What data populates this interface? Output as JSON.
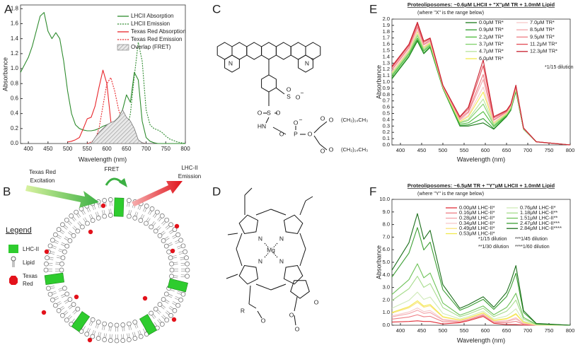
{
  "panel_labels": [
    "A",
    "B",
    "C",
    "D",
    "E",
    "F"
  ],
  "chart_data": [
    {
      "type": "line",
      "x_label": "Wavelength (nm)",
      "y_label": "Absorbance",
      "x": [
        380,
        390,
        400,
        410,
        420,
        430,
        440,
        450,
        460,
        470,
        480,
        490,
        500,
        510,
        520,
        530,
        540,
        550,
        560,
        570,
        580,
        590,
        600,
        610,
        620,
        630,
        640,
        650,
        660,
        670,
        680,
        690,
        700,
        710,
        720,
        730,
        740,
        750,
        760,
        770,
        780,
        790,
        800
      ],
      "xlim": [
        380,
        800
      ],
      "xticks": [
        400,
        450,
        500,
        550,
        600,
        650,
        700,
        750,
        800
      ],
      "ylim": [
        0,
        1.85
      ],
      "yticks": [
        {
          "value": 0,
          "label": "0.0"
        },
        {
          "value": 0.2,
          "label": "0.2"
        },
        {
          "value": 0.4,
          "label": "0.4"
        },
        {
          "value": 0.6,
          "label": "0.6"
        },
        {
          "value": 0.8,
          "label": "0.8"
        },
        {
          "value": 1,
          "label": "1.0"
        },
        {
          "value": 1.2,
          "label": "1.2"
        },
        {
          "value": 1.4,
          "label": "1.4"
        },
        {
          "value": 1.6,
          "label": "1.6"
        },
        {
          "value": 1.8,
          "label": "1.8"
        }
      ],
      "legend": "upper right",
      "legend_columns": 1,
      "series": [
        {
          "name": "LHCII Absorption",
          "color": "#2e8b2e",
          "dash": false,
          "values": [
            0.95,
            1.05,
            1.15,
            1.3,
            1.5,
            1.7,
            1.75,
            1.5,
            1.4,
            1.48,
            1.4,
            1.1,
            0.7,
            0.4,
            0.25,
            0.2,
            0.18,
            0.17,
            0.17,
            0.18,
            0.2,
            0.23,
            0.25,
            0.27,
            0.3,
            0.35,
            0.45,
            0.65,
            0.55,
            0.95,
            0.85,
            0.3,
            0.08,
            0.03,
            0.01,
            0,
            0,
            0,
            0,
            0,
            0,
            0,
            0
          ]
        },
        {
          "name": "LHCII Emission",
          "color": "#2e8b2e",
          "dash": true,
          "values": [
            null,
            null,
            null,
            null,
            null,
            null,
            null,
            null,
            null,
            null,
            null,
            null,
            null,
            null,
            null,
            null,
            null,
            null,
            null,
            null,
            null,
            null,
            null,
            null,
            0,
            0.02,
            0.05,
            0.15,
            0.4,
            0.9,
            1.35,
            1.1,
            0.45,
            0.25,
            0.2,
            0.18,
            0.15,
            0.1,
            0.06,
            0.04,
            0.02,
            0.01,
            0
          ]
        },
        {
          "name": "Texas Red Absorption",
          "color": "#e8262b",
          "dash": false,
          "values": [
            null,
            null,
            null,
            null,
            null,
            null,
            null,
            null,
            null,
            null,
            null,
            null,
            0.02,
            0.03,
            0.05,
            0.08,
            0.2,
            0.33,
            0.35,
            0.5,
            0.75,
            0.98,
            0.8,
            0.3,
            0.05,
            0.01,
            0,
            null,
            null,
            null,
            null,
            null,
            null,
            null,
            null,
            null,
            null,
            null,
            null,
            null,
            null,
            null,
            null
          ]
        },
        {
          "name": "Texas Red Emission",
          "color": "#e8262b",
          "dash": true,
          "values": [
            null,
            null,
            null,
            null,
            null,
            null,
            null,
            null,
            null,
            null,
            null,
            null,
            null,
            null,
            null,
            null,
            null,
            0,
            0.02,
            0.05,
            0.2,
            0.5,
            0.8,
            0.88,
            0.7,
            0.45,
            0.3,
            0.18,
            0.1,
            0.06,
            0.03,
            0.01,
            0,
            null,
            null,
            null,
            null,
            null,
            null,
            null,
            null,
            null,
            null
          ]
        },
        {
          "name": "Overlap (FRET)",
          "color": "#777777",
          "kind": "area",
          "values": [
            null,
            null,
            null,
            null,
            null,
            null,
            null,
            null,
            null,
            null,
            null,
            null,
            null,
            null,
            null,
            null,
            null,
            null,
            0,
            0.08,
            0.15,
            0.2,
            0.25,
            0.28,
            0.3,
            0.35,
            0.45,
            0.35,
            0.3,
            0.2,
            0.05,
            0.01,
            0,
            null,
            null,
            null,
            null,
            null,
            null,
            null,
            null,
            null,
            null
          ]
        }
      ]
    },
    {
      "type": "line",
      "title": "Proteoliposomes: ~0.6μM LHCII + \"X\"μM TR + 1.0mM Lipid",
      "subtitle": "(where \"X\" is the range below)",
      "notes": [
        "*1/15 dilution"
      ],
      "x_label": "Wavelength (nm)",
      "y_label": "Absorbance",
      "x": [
        380,
        420,
        440,
        455,
        470,
        500,
        540,
        560,
        595,
        620,
        650,
        660,
        672,
        690,
        720,
        800
      ],
      "xlim": [
        380,
        800
      ],
      "xticks": [
        400,
        450,
        500,
        550,
        600,
        650,
        700,
        750,
        800
      ],
      "ylim": [
        0,
        2
      ],
      "yticks": [
        {
          "value": 0,
          "label": "0.0"
        },
        {
          "value": 0.1,
          "label": "0.1"
        },
        {
          "value": 0.2,
          "label": "0.2"
        },
        {
          "value": 0.3,
          "label": "0.3"
        },
        {
          "value": 0.4,
          "label": "0.4"
        },
        {
          "value": 0.5,
          "label": "0.5"
        },
        {
          "value": 0.6,
          "label": "0.6"
        },
        {
          "value": 0.7,
          "label": "0.7"
        },
        {
          "value": 0.8,
          "label": "0.8"
        },
        {
          "value": 0.9,
          "label": "0.9"
        },
        {
          "value": 1,
          "label": "1.0"
        },
        {
          "value": 1.1,
          "label": "1.1"
        },
        {
          "value": 1.2,
          "label": "1.2"
        },
        {
          "value": 1.3,
          "label": "1.3"
        },
        {
          "value": 1.4,
          "label": "1.4"
        },
        {
          "value": 1.5,
          "label": "1.5"
        },
        {
          "value": 1.6,
          "label": "1.6"
        },
        {
          "value": 1.7,
          "label": "1.7"
        },
        {
          "value": 1.8,
          "label": "1.8"
        },
        {
          "value": 1.9,
          "label": "1.9"
        },
        {
          "value": 2,
          "label": "2.0"
        }
      ],
      "legend": "upper right",
      "legend_columns": 2,
      "series": [
        {
          "name": "0.0μM TR*",
          "color": "#1a7a1a",
          "values": [
            1.05,
            1.4,
            1.65,
            1.45,
            1.55,
            0.9,
            0.3,
            0.3,
            0.35,
            0.25,
            0.45,
            0.55,
            0.85,
            0.25,
            0.05,
            0
          ]
        },
        {
          "name": "0.9μM TR*",
          "color": "#2e9e2e",
          "values": [
            1.06,
            1.41,
            1.67,
            1.46,
            1.56,
            0.9,
            0.31,
            0.32,
            0.42,
            0.26,
            0.46,
            0.56,
            0.86,
            0.25,
            0.05,
            0
          ]
        },
        {
          "name": "2.2μM TR*",
          "color": "#4cbb3a",
          "values": [
            1.09,
            1.44,
            1.7,
            1.49,
            1.58,
            0.91,
            0.33,
            0.35,
            0.53,
            0.29,
            0.47,
            0.57,
            0.87,
            0.25,
            0.05,
            0
          ]
        },
        {
          "name": "3.7μM TR*",
          "color": "#7fd16a",
          "values": [
            1.11,
            1.46,
            1.74,
            1.51,
            1.6,
            0.92,
            0.35,
            0.39,
            0.65,
            0.31,
            0.48,
            0.58,
            0.88,
            0.26,
            0.05,
            0
          ]
        },
        {
          "name": "4.7μM TR*",
          "color": "#b7e39b",
          "values": [
            1.13,
            1.48,
            1.76,
            1.53,
            1.61,
            0.92,
            0.36,
            0.41,
            0.73,
            0.33,
            0.49,
            0.59,
            0.89,
            0.26,
            0.05,
            0
          ]
        },
        {
          "name": "6.0μM TR*",
          "color": "#f2e94e",
          "values": [
            1.15,
            1.5,
            1.8,
            1.55,
            1.62,
            0.92,
            0.37,
            0.45,
            0.84,
            0.35,
            0.5,
            0.6,
            0.9,
            0.26,
            0.05,
            0
          ]
        },
        {
          "name": "7.0μM TR*",
          "color": "#f7c9c9",
          "values": [
            1.16,
            1.51,
            1.82,
            1.56,
            1.64,
            0.93,
            0.39,
            0.47,
            0.92,
            0.36,
            0.51,
            0.61,
            0.91,
            0.26,
            0.05,
            0
          ]
        },
        {
          "name": "8.5μM TR*",
          "color": "#f3a3a8",
          "values": [
            1.19,
            1.54,
            1.86,
            1.59,
            1.65,
            0.93,
            0.4,
            0.51,
            1.04,
            0.39,
            0.52,
            0.62,
            0.92,
            0.26,
            0.05,
            0
          ]
        },
        {
          "name": "9.5μM TR*",
          "color": "#ee7d84",
          "values": [
            1.2,
            1.55,
            1.88,
            1.6,
            1.67,
            0.94,
            0.42,
            0.53,
            1.12,
            0.4,
            0.53,
            0.63,
            0.93,
            0.27,
            0.05,
            0
          ]
        },
        {
          "name": "11.2μM TR*",
          "color": "#e24a55",
          "values": [
            1.23,
            1.58,
            1.92,
            1.63,
            1.69,
            0.95,
            0.44,
            0.57,
            1.26,
            0.43,
            0.54,
            0.64,
            0.94,
            0.27,
            0.05,
            0
          ]
        },
        {
          "name": "12.3μM TR*",
          "color": "#c8202e",
          "values": [
            1.25,
            1.6,
            1.95,
            1.65,
            1.7,
            0.95,
            0.45,
            0.6,
            1.35,
            0.45,
            0.55,
            0.65,
            0.95,
            0.27,
            0.05,
            0
          ]
        }
      ]
    },
    {
      "type": "line",
      "title": "Proteoliposomes: ~6.5μM TR + \"Y\"μM LHCII + 1.0mM Lipid",
      "subtitle": "(where \"Y\" is the range below)",
      "notes": [
        "*1/15 dilution",
        "***1/45 dilution",
        "**1/30 dilution",
        "****1/60 dilution"
      ],
      "x_label": "Wavelength (nm)",
      "y_label": "Absorbance",
      "x": [
        380,
        420,
        440,
        455,
        470,
        500,
        540,
        560,
        595,
        620,
        650,
        660,
        672,
        690,
        720,
        800
      ],
      "xlim": [
        380,
        800
      ],
      "xticks": [
        400,
        450,
        500,
        550,
        600,
        650,
        700,
        750,
        800
      ],
      "ylim": [
        0,
        10
      ],
      "yticks": [
        {
          "value": 0,
          "label": "0.0"
        },
        {
          "value": 1,
          "label": "1.0"
        },
        {
          "value": 2,
          "label": "2.0"
        },
        {
          "value": 3,
          "label": "3.0"
        },
        {
          "value": 4,
          "label": "4.0"
        },
        {
          "value": 5,
          "label": "5.0"
        },
        {
          "value": 6,
          "label": "6.0"
        },
        {
          "value": 7,
          "label": "7.0"
        },
        {
          "value": 8,
          "label": "8.0"
        },
        {
          "value": 9,
          "label": "9.0"
        },
        {
          "value": 10,
          "label": "10.0"
        }
      ],
      "legend": "upper right",
      "legend_columns": 2,
      "series": [
        {
          "name": "0.00μM LHC-II*",
          "color": "#e0303a",
          "values": [
            0.25,
            0.3,
            0.35,
            0.3,
            0.3,
            0.1,
            0.2,
            0.35,
            0.7,
            0.15,
            0.05,
            0.05,
            0.05,
            0.02,
            0,
            0
          ]
        },
        {
          "name": "0.16μM LHC-II*",
          "color": "#ee7d84",
          "values": [
            0.48,
            0.65,
            0.83,
            0.67,
            0.71,
            0.28,
            0.26,
            0.42,
            0.79,
            0.22,
            0.19,
            0.24,
            0.31,
            0.08,
            0.01,
            0
          ]
        },
        {
          "name": "0.28μM LHC-II*",
          "color": "#f3a3a8",
          "values": [
            0.66,
            0.92,
            1.19,
            0.94,
            1.01,
            0.41,
            0.31,
            0.48,
            0.85,
            0.28,
            0.3,
            0.39,
            0.51,
            0.13,
            0.01,
            0
          ]
        },
        {
          "name": "0.34μM LHC-II*",
          "color": "#f7c9c9",
          "values": [
            0.74,
            1.05,
            1.37,
            1.08,
            1.17,
            0.47,
            0.34,
            0.5,
            0.89,
            0.3,
            0.36,
            0.46,
            0.61,
            0.16,
            0.02,
            0
          ]
        },
        {
          "name": "0.49μM LHC-II*",
          "color": "#f9e27a",
          "values": [
            0.96,
            1.38,
            1.82,
            1.43,
            1.55,
            0.64,
            0.4,
            0.57,
            0.97,
            0.37,
            0.49,
            0.64,
            0.86,
            0.22,
            0.02,
            0
          ]
        },
        {
          "name": "0.53μM LHC-II*",
          "color": "#f2e94e",
          "values": [
            1.02,
            1.47,
            1.94,
            1.52,
            1.65,
            0.68,
            0.41,
            0.59,
            0.99,
            0.39,
            0.53,
            0.69,
            0.92,
            0.23,
            0.03,
            0
          ]
        },
        {
          "name": "0.76μM LHC-II*",
          "color": "#cfeab8",
          "values": [
            1.35,
            1.97,
            2.63,
            2.05,
            2.24,
            0.94,
            0.5,
            0.69,
            1.12,
            0.49,
            0.73,
            0.96,
            1.3,
            0.32,
            0.04,
            0
          ]
        },
        {
          "name": "1.18μM LHC-II**",
          "color": "#a6dc8c",
          "values": [
            1.96,
            2.9,
            3.89,
            3.01,
            3.31,
            1.4,
            0.67,
            0.88,
            1.35,
            0.68,
            1.11,
            1.47,
            2,
            0.49,
            0.06,
            0
          ]
        },
        {
          "name": "1.51μM LHC-II**",
          "color": "#6fc35a",
          "values": [
            2.44,
            3.62,
            4.88,
            3.77,
            4.15,
            1.76,
            0.8,
            1.03,
            1.53,
            0.83,
            1.41,
            1.86,
            2.54,
            0.62,
            0.08,
            0
          ]
        },
        {
          "name": "2.47μM LHC-II***",
          "color": "#3a9e32",
          "values": [
            3.83,
            5.73,
            7.76,
            5.98,
            6.6,
            2.82,
            1.19,
            1.46,
            2.06,
            1.26,
            2.27,
            3.01,
            4.13,
            1.01,
            0.12,
            0
          ]
        },
        {
          "name": "2.84μM LHC-II****",
          "color": "#1a6e1a",
          "values": [
            4.37,
            6.55,
            8.87,
            6.83,
            7.54,
            3.22,
            1.34,
            1.63,
            2.26,
            1.43,
            2.61,
            3.46,
            4.74,
            1.16,
            0.14,
            0
          ]
        }
      ]
    }
  ],
  "diagram_b": {
    "excitation": [
      "Texas Red",
      "Excitation"
    ],
    "fret": "FRET",
    "emission": [
      "LHC-II",
      "Emission"
    ],
    "legend_title": "Legend",
    "legend_items": [
      "LHC-II",
      "Lipid"
    ],
    "legend_texas_red": [
      "Texas",
      "Red"
    ]
  },
  "structure_c": {
    "atoms": [
      "N",
      "N",
      "+",
      "S",
      "O",
      "O",
      "−",
      "O",
      "S",
      "O",
      "HN",
      "O",
      "P",
      "O",
      "−",
      "O",
      "O",
      "O",
      "O",
      "O",
      "(CH₂)₁₄CH₃",
      "(CH₂)₁₄CH₃"
    ]
  },
  "structure_d": {
    "atoms": [
      "N",
      "N",
      "N",
      "N",
      "Mg",
      "R",
      "O",
      "O",
      "O",
      "O"
    ]
  }
}
